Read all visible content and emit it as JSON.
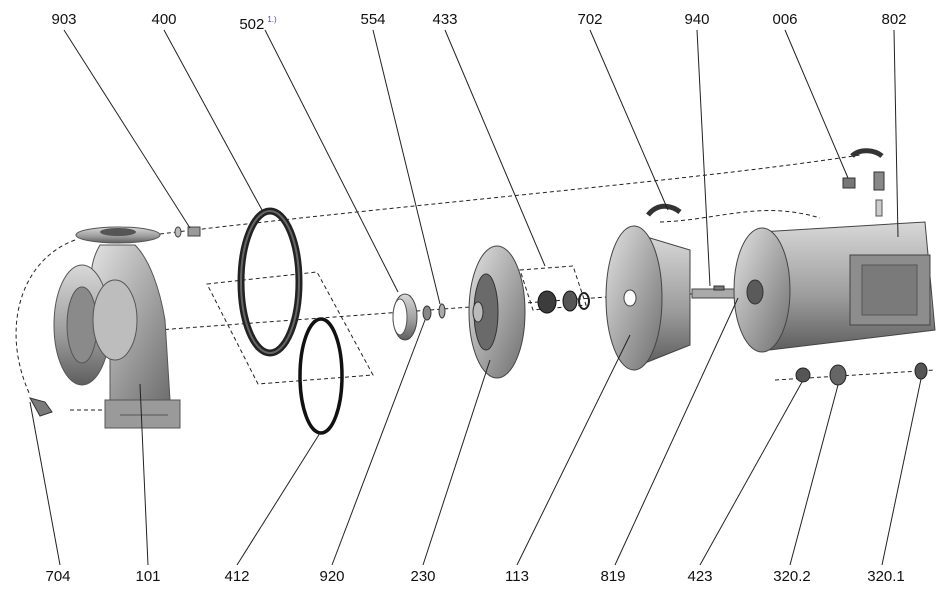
{
  "labels_top": [
    {
      "id": "903",
      "text": "903"
    },
    {
      "id": "400",
      "text": "400"
    },
    {
      "id": "502",
      "text": "502",
      "note": "1.)"
    },
    {
      "id": "554",
      "text": "554"
    },
    {
      "id": "433",
      "text": "433"
    },
    {
      "id": "702",
      "text": "702"
    },
    {
      "id": "940",
      "text": "940"
    },
    {
      "id": "006",
      "text": "006"
    },
    {
      "id": "802",
      "text": "802"
    }
  ],
  "labels_bottom": [
    {
      "id": "704",
      "text": "704"
    },
    {
      "id": "101",
      "text": "101"
    },
    {
      "id": "412",
      "text": "412"
    },
    {
      "id": "920",
      "text": "920"
    },
    {
      "id": "230",
      "text": "230"
    },
    {
      "id": "113",
      "text": "113"
    },
    {
      "id": "819",
      "text": "819"
    },
    {
      "id": "423",
      "text": "423"
    },
    {
      "id": "320_2",
      "text": "320.2"
    },
    {
      "id": "320_1",
      "text": "320.1"
    }
  ],
  "colors": {
    "part": "#a9a9a9",
    "part_dark": "#6f6f6f",
    "part_light": "#d4d4d4",
    "leader": "#222222"
  }
}
